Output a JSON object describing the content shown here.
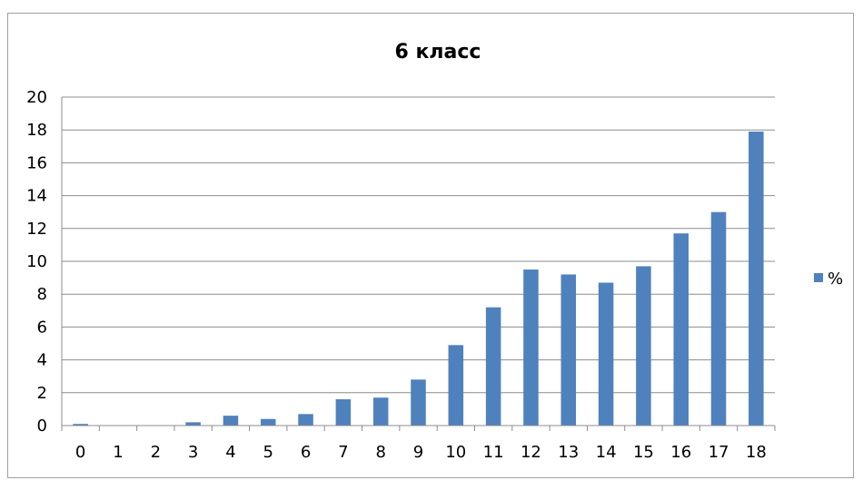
{
  "chart_data": {
    "type": "bar",
    "title": "6 класс",
    "xlabel": "",
    "ylabel": "",
    "categories": [
      "0",
      "1",
      "2",
      "3",
      "4",
      "5",
      "6",
      "7",
      "8",
      "9",
      "10",
      "11",
      "12",
      "13",
      "14",
      "15",
      "16",
      "17",
      "18"
    ],
    "series": [
      {
        "name": "%",
        "color": "#4F81BD",
        "values": [
          0.1,
          0,
          0,
          0.2,
          0.6,
          0.4,
          0.7,
          1.6,
          1.7,
          2.8,
          4.9,
          7.2,
          9.5,
          9.2,
          8.7,
          9.7,
          11.7,
          13.0,
          17.9
        ]
      }
    ],
    "ylim": [
      0,
      20
    ],
    "yticks": [
      "0",
      "2",
      "4",
      "6",
      "8",
      "10",
      "12",
      "14",
      "16",
      "18",
      "20"
    ],
    "grid": true,
    "legend_position": "right"
  }
}
